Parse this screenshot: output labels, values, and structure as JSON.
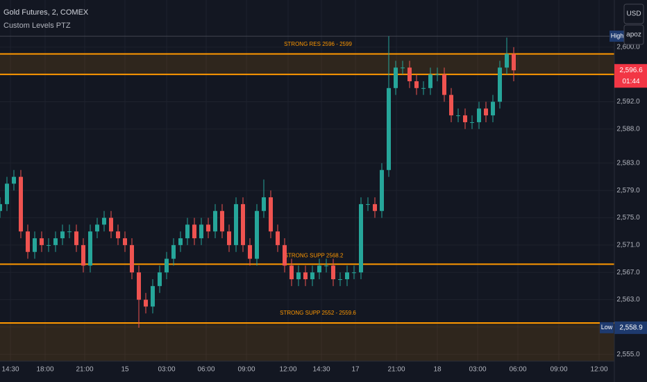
{
  "chart_data": {
    "type": "candlestick",
    "title": "Gold Futures, 2, COMEX",
    "subtitle": "Custom Levels PTZ",
    "currency": "USD",
    "scale_menu": "apoz",
    "up_color": "#26a69a",
    "down_color": "#ef5350",
    "grid": true,
    "x": [
      0,
      1,
      2,
      3,
      4,
      5,
      6,
      7,
      8,
      9,
      10,
      11,
      12,
      13,
      14,
      15,
      16,
      17,
      18,
      19,
      20,
      21,
      22,
      23,
      24,
      25,
      26,
      27,
      28,
      29,
      30,
      31,
      32,
      33,
      34,
      35,
      36,
      37,
      38,
      39,
      40,
      41,
      42,
      43,
      44,
      45,
      46,
      47,
      48,
      49,
      50,
      51,
      52,
      53,
      54,
      55,
      56,
      57,
      58,
      59,
      60,
      61,
      62,
      63,
      64,
      65,
      66,
      67,
      68,
      69,
      70,
      71,
      72,
      73,
      74
    ],
    "open": [
      2576,
      2577,
      2580,
      2581,
      2573,
      2570,
      2572,
      2571,
      2571,
      2572,
      2573,
      2573,
      2571,
      2568,
      2573,
      2574,
      2575,
      2573,
      2572,
      2571,
      2567,
      2563,
      2562,
      2565,
      2567,
      2569,
      2571,
      2572,
      2574,
      2572,
      2574,
      2573,
      2576,
      2573,
      2571,
      2577,
      2571,
      2569,
      2576,
      2578,
      2573,
      2571,
      2568,
      2566,
      2567,
      2566,
      2567,
      2568,
      2568,
      2566,
      2566,
      2567,
      2567,
      2577,
      2577,
      2576,
      2582,
      2594,
      2597,
      2597,
      2595,
      2594,
      2594,
      2596,
      2596,
      2593,
      2590,
      2590,
      2589,
      2589,
      2591,
      2590,
      2592,
      2597,
      2599
    ],
    "high": [
      2578,
      2581,
      2582,
      2582,
      2574,
      2573,
      2573,
      2572,
      2573,
      2574,
      2574,
      2574,
      2572,
      2574,
      2575,
      2576,
      2576,
      2574,
      2573,
      2572,
      2568,
      2564,
      2566,
      2568,
      2570,
      2572,
      2573,
      2575,
      2575,
      2575,
      2575,
      2577,
      2577,
      2574,
      2578,
      2578,
      2572,
      2577,
      2580.6,
      2579,
      2574,
      2572,
      2569,
      2568,
      2568,
      2568,
      2569,
      2569,
      2569,
      2567,
      2568,
      2568,
      2578,
      2578,
      2578,
      2583,
      2601.6,
      2598,
      2598,
      2598,
      2596,
      2595,
      2597,
      2597,
      2597,
      2594,
      2591,
      2591,
      2590,
      2592,
      2592,
      2593,
      2598,
      2601.4,
      2600
    ],
    "low": [
      2575,
      2576,
      2579,
      2572,
      2569,
      2569,
      2570,
      2570,
      2570,
      2571,
      2572,
      2570,
      2567,
      2567,
      2572,
      2573,
      2572,
      2571,
      2570,
      2566,
      2558.9,
      2561,
      2561,
      2564,
      2566,
      2568,
      2570,
      2571,
      2571,
      2571,
      2572,
      2572,
      2572,
      2570,
      2570,
      2570,
      2568,
      2568,
      2575,
      2572,
      2570,
      2567,
      2565,
      2565,
      2565,
      2565,
      2566,
      2567,
      2565,
      2565,
      2565,
      2566,
      2566,
      2576,
      2575,
      2575,
      2581,
      2593,
      2596,
      2594,
      2593,
      2593,
      2593,
      2595,
      2592,
      2589,
      2589,
      2588,
      2588,
      2588,
      2589,
      2589,
      2591,
      2596,
      2595
    ],
    "close": [
      2577,
      2580,
      2581,
      2573,
      2570,
      2572,
      2571,
      2571,
      2572,
      2573,
      2573,
      2571,
      2568,
      2573,
      2574,
      2575,
      2573,
      2572,
      2571,
      2567,
      2563,
      2562,
      2565,
      2567,
      2569,
      2571,
      2572,
      2574,
      2572,
      2574,
      2573,
      2576,
      2573,
      2571,
      2577,
      2571,
      2569,
      2576,
      2578,
      2573,
      2571,
      2568,
      2566,
      2567,
      2566,
      2567,
      2568,
      2568,
      2566,
      2566,
      2567,
      2567,
      2577,
      2577,
      2576,
      2582,
      2594,
      2597,
      2597,
      2595,
      2594,
      2594,
      2596,
      2596,
      2593,
      2590,
      2590,
      2589,
      2589,
      2591,
      2590,
      2592,
      2597,
      2599,
      2596.6
    ],
    "xlim": [
      0,
      88.5
    ],
    "xticks": [
      {
        "value": 1.5,
        "label": "14:30"
      },
      {
        "value": 6.5,
        "label": "18:00"
      },
      {
        "value": 12.2,
        "label": "21:00"
      },
      {
        "value": 18,
        "label": "15"
      },
      {
        "value": 24,
        "label": "03:00"
      },
      {
        "value": 29.7,
        "label": "06:00"
      },
      {
        "value": 35.5,
        "label": "09:00"
      },
      {
        "value": 41.5,
        "label": "12:00"
      },
      {
        "value": 46.3,
        "label": "14:30"
      },
      {
        "value": 51.2,
        "label": "17"
      },
      {
        "value": 57.1,
        "label": "21:00"
      },
      {
        "value": 63,
        "label": "18"
      },
      {
        "value": 68.8,
        "label": "03:00"
      },
      {
        "value": 74.6,
        "label": "06:00"
      },
      {
        "value": 80.5,
        "label": "09:00"
      },
      {
        "value": 86.3,
        "label": "12:00"
      }
    ],
    "ylim": [
      2554,
      2606.9
    ],
    "yticks": [
      {
        "value": 2555,
        "label": "2,555.0"
      },
      {
        "value": 2559,
        "label": "2,559.0"
      },
      {
        "value": 2563,
        "label": "2,563.0"
      },
      {
        "value": 2567,
        "label": "2,567.0"
      },
      {
        "value": 2571,
        "label": "2,571.0"
      },
      {
        "value": 2575,
        "label": "2,575.0"
      },
      {
        "value": 2579,
        "label": "2,579.0"
      },
      {
        "value": 2583,
        "label": "2,583.0"
      },
      {
        "value": 2588,
        "label": "2,588.0"
      },
      {
        "value": 2592,
        "label": "2,592.0"
      },
      {
        "value": 2596,
        "label": "2,596.0"
      },
      {
        "value": 2600,
        "label": "2,600.0"
      }
    ],
    "level_color": "#ff9800",
    "zones": [
      {
        "from": 2596,
        "to": 2599,
        "label": "STRONG RES 2596 - 2599"
      },
      {
        "from": 2552,
        "to": 2559.6,
        "label": "STRONG SUPP 2552 - 2559.6"
      }
    ],
    "lines": [
      {
        "value": 2568.2,
        "label": "STRONG SUPP 2568.2"
      }
    ],
    "high_tag": {
      "text": "High",
      "value": 2601.6
    },
    "low_tag": {
      "text": "Low",
      "value": 2558.9,
      "label": "2,558.9"
    },
    "last_price": {
      "value": 2596.6,
      "label": "2,596.6",
      "countdown": "01:44"
    }
  }
}
